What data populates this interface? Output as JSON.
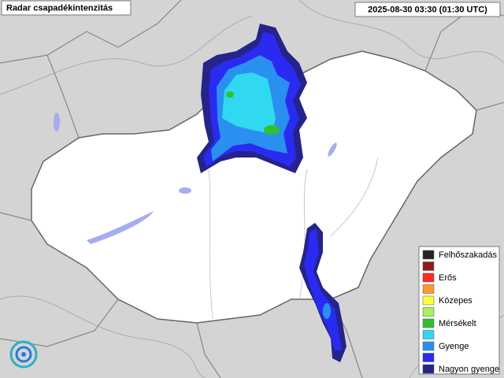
{
  "header": {
    "title": "Radar csapadékintenzitás",
    "timestamp": "2025-08-30 03:30 (01:30 UTC)"
  },
  "legend": {
    "items": [
      {
        "label": "Felhőszakadás",
        "color": "#262626"
      },
      {
        "label": null,
        "color": "#8b1c1c"
      },
      {
        "label": "Erős",
        "color": "#ff2a2a"
      },
      {
        "label": null,
        "color": "#ff9a2a"
      },
      {
        "label": "Közepes",
        "color": "#ffff40"
      },
      {
        "label": null,
        "color": "#a6f060"
      },
      {
        "label": "Mérsékelt",
        "color": "#30c030"
      },
      {
        "label": null,
        "color": "#30d8f0"
      },
      {
        "label": "Gyenge",
        "color": "#2a90f0"
      },
      {
        "label": null,
        "color": "#2a2af0"
      },
      {
        "label": "Nagyon gyenge",
        "color": "#24248a"
      }
    ]
  }
}
